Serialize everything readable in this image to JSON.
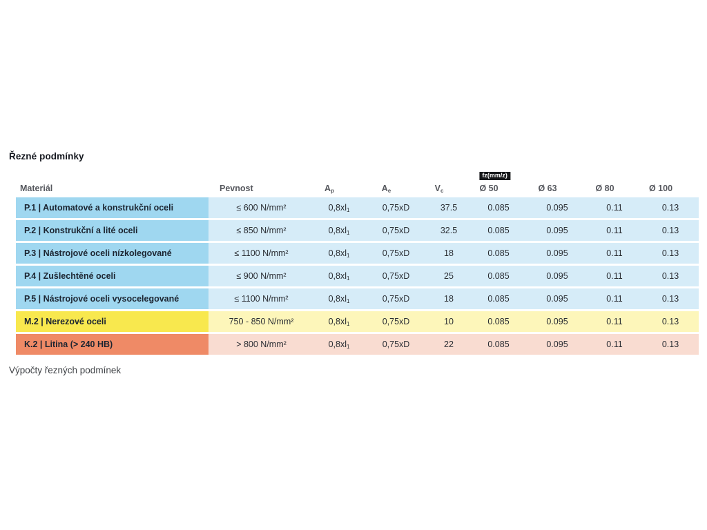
{
  "title": "Řezné podmínky",
  "footer_heading": "Výpočty řezných podmínek",
  "colors": {
    "blue_material": "#9fd7f0",
    "blue_values": "#d6ecf8",
    "yellow_material": "#f8e84e",
    "yellow_values": "#fdf6ba",
    "orange_material": "#ef8a66",
    "orange_values": "#f9dcd1",
    "tooltip_bg": "#17181a",
    "header_text": "#56585e"
  },
  "header": {
    "material": "Materiál",
    "pevnost": "Pevnost",
    "ap_base": "A",
    "ap_sub": "p",
    "ae_base": "A",
    "ae_sub": "e",
    "vc_base": "V",
    "vc_sub": "c",
    "tooltip": "fz(mm/z)",
    "d50": "Ø 50",
    "d63": "Ø 63",
    "d80": "Ø 80",
    "d100": "Ø 100"
  },
  "rows": [
    {
      "material": "P.1 | Automatové a konstrukční oceli",
      "pevnost": "≤ 600 N/mm²",
      "ap_base": "0,8xl",
      "ap_sub": "1",
      "ae": "0,75xD",
      "vc": "37.5",
      "d50": "0.085",
      "d63": "0.095",
      "d80": "0.11",
      "d100": "0.13"
    },
    {
      "material": "P.2 | Konstrukční a lité oceli",
      "pevnost": "≤ 850 N/mm²",
      "ap_base": "0,8xl",
      "ap_sub": "1",
      "ae": "0,75xD",
      "vc": "32.5",
      "d50": "0.085",
      "d63": "0.095",
      "d80": "0.11",
      "d100": "0.13"
    },
    {
      "material": "P.3 | Nástrojové oceli nízkolegované",
      "pevnost": "≤ 1100 N/mm²",
      "ap_base": "0,8xl",
      "ap_sub": "1",
      "ae": "0,75xD",
      "vc": "18",
      "d50": "0.085",
      "d63": "0.095",
      "d80": "0.11",
      "d100": "0.13"
    },
    {
      "material": "P.4 | Zušlechtěné oceli",
      "pevnost": "≤ 900 N/mm²",
      "ap_base": "0,8xl",
      "ap_sub": "1",
      "ae": "0,75xD",
      "vc": "25",
      "d50": "0.085",
      "d63": "0.095",
      "d80": "0.11",
      "d100": "0.13"
    },
    {
      "material": "P.5 | Nástrojové oceli vysocelegované",
      "pevnost": "≤ 1100 N/mm²",
      "ap_base": "0,8xl",
      "ap_sub": "1",
      "ae": "0,75xD",
      "vc": "18",
      "d50": "0.085",
      "d63": "0.095",
      "d80": "0.11",
      "d100": "0.13"
    },
    {
      "material": "M.2 | Nerezové oceli",
      "pevnost": "750 - 850 N/mm²",
      "ap_base": "0,8xl",
      "ap_sub": "1",
      "ae": "0,75xD",
      "vc": "10",
      "d50": "0.085",
      "d63": "0.095",
      "d80": "0.11",
      "d100": "0.13"
    },
    {
      "material": "K.2 | Litina (> 240 HB)",
      "pevnost": "> 800 N/mm²",
      "ap_base": "0,8xl",
      "ap_sub": "1",
      "ae": "0,75xD",
      "vc": "22",
      "d50": "0.085",
      "d63": "0.095",
      "d80": "0.11",
      "d100": "0.13"
    }
  ]
}
